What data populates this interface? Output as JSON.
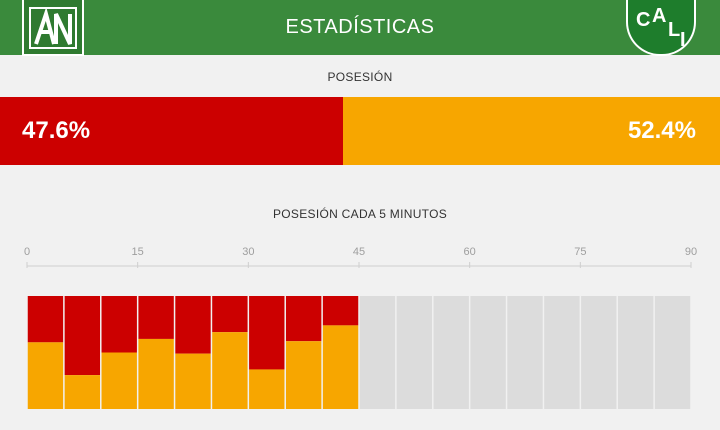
{
  "header": {
    "title": "ESTADÍSTICAS",
    "left_logo": {
      "text": "AN",
      "color": "#2f7a30"
    },
    "right_logo": {
      "text": "CALI",
      "color": "#1e7d2c"
    }
  },
  "possession": {
    "label": "POSESIÓN",
    "home_pct": 47.6,
    "away_pct": 52.4,
    "home_text": "47.6%",
    "away_text": "52.4%",
    "home_color": "#cc0000",
    "away_color": "#f7a600"
  },
  "chart_data": {
    "type": "bar",
    "title": "POSESIÓN CADA 5 MINUTOS",
    "x_ticks": [
      "0",
      "15",
      "30",
      "45",
      "60",
      "75",
      "90"
    ],
    "xlim": [
      0,
      90
    ],
    "interval_minutes": 5,
    "ylim": [
      0,
      100
    ],
    "categories": [
      "0-5",
      "5-10",
      "10-15",
      "15-20",
      "20-25",
      "25-30",
      "30-35",
      "35-40",
      "40-45",
      "45-50",
      "50-55",
      "55-60",
      "60-65",
      "65-70",
      "70-75",
      "75-80",
      "80-85",
      "85-90"
    ],
    "series": [
      {
        "values": [
          41,
          70,
          50,
          38,
          51,
          32,
          65,
          40,
          26,
          null,
          null,
          null,
          null,
          null,
          null,
          null,
          null,
          null
        ],
        "color": "#cc0000"
      },
      {
        "values": [
          59,
          30,
          50,
          62,
          49,
          68,
          35,
          60,
          74,
          null,
          null,
          null,
          null,
          null,
          null,
          null,
          null,
          null
        ],
        "color": "#f7a600"
      }
    ],
    "unplayed_color": "#dcdcdc"
  }
}
